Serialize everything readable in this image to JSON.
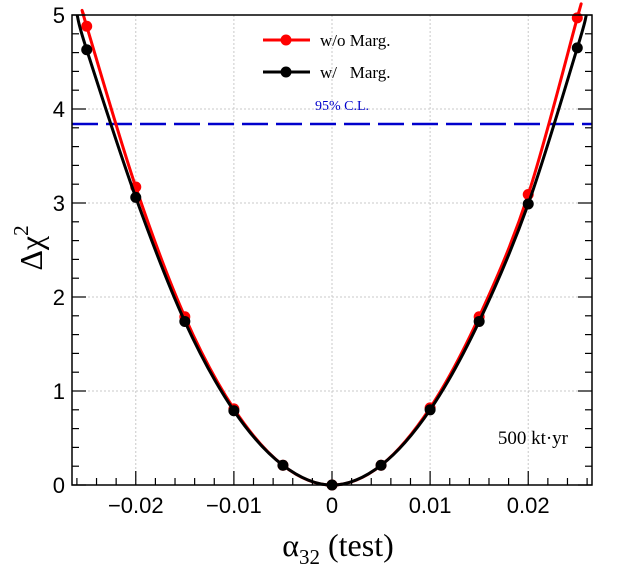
{
  "chart_data": {
    "type": "line",
    "xlabel_main": "α",
    "xlabel_sub": "32",
    "xlabel_rest": " (test)",
    "ylabel_main": "Δχ",
    "ylabel_sup": "2",
    "xlim": [
      -0.0265,
      0.0265
    ],
    "ylim": [
      0,
      5
    ],
    "x_ticks": [
      -0.02,
      -0.01,
      0,
      0.01,
      0.02
    ],
    "x_tick_labels": [
      "−0.02",
      "−0.01",
      "0",
      "0.01",
      "0.02"
    ],
    "y_ticks": [
      0,
      1,
      2,
      3,
      4,
      5
    ],
    "y_tick_labels": [
      "0",
      "1",
      "2",
      "3",
      "4",
      "5"
    ],
    "grid": true,
    "legend_position": "top-center",
    "series": [
      {
        "name": "w/o Marg.",
        "color": "#ff0000",
        "x": [
          -0.025,
          -0.02,
          -0.015,
          -0.01,
          -0.005,
          0,
          0.005,
          0.01,
          0.015,
          0.02,
          0.025
        ],
        "y": [
          4.88,
          3.17,
          1.79,
          0.81,
          0.21,
          0.0,
          0.21,
          0.82,
          1.79,
          3.09,
          4.97
        ]
      },
      {
        "name": "w/   Marg.",
        "color": "#000000",
        "x": [
          -0.025,
          -0.02,
          -0.015,
          -0.01,
          -0.005,
          0,
          0.005,
          0.01,
          0.015,
          0.02,
          0.025
        ],
        "y": [
          4.63,
          3.06,
          1.74,
          0.79,
          0.21,
          0.0,
          0.21,
          0.8,
          1.74,
          2.99,
          4.65
        ]
      }
    ],
    "reference_line": {
      "label": "95% C.L.",
      "y": 3.84,
      "color": "#0000cc",
      "style": "dashed"
    },
    "annotation": "500 kt·yr"
  }
}
